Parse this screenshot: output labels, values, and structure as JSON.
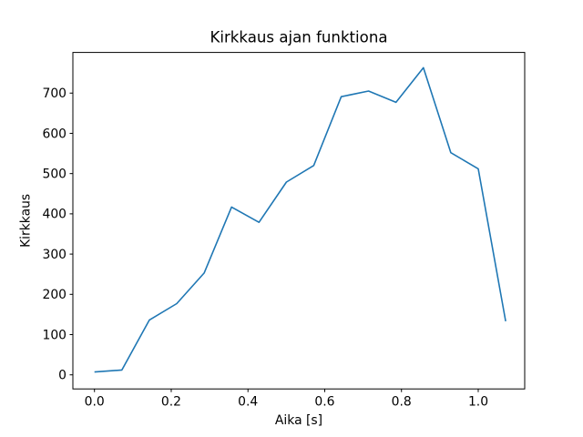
{
  "chart_data": {
    "type": "line",
    "title": "Kirkkaus ajan funktiona",
    "xlabel": "Aika [s]",
    "ylabel": "Kirkkaus",
    "x": [
      0.0,
      0.0714,
      0.1429,
      0.2143,
      0.2857,
      0.3571,
      0.4286,
      0.5,
      0.5714,
      0.6429,
      0.7143,
      0.7857,
      0.8571,
      0.9286,
      1.0,
      1.0714
    ],
    "y": [
      7,
      12,
      136,
      177,
      253,
      417,
      379,
      479,
      520,
      691,
      705,
      677,
      763,
      552,
      512,
      133
    ],
    "series_color": "#1f77b4",
    "background_color": "#ffffff",
    "xlim": [
      -0.0563,
      1.1211
    ],
    "ylim": [
      -35,
      801
    ],
    "xtick_labels": [
      "0.0",
      "0.2",
      "0.4",
      "0.6",
      "0.8",
      "1.0"
    ],
    "xtick_values": [
      0.0,
      0.2,
      0.4,
      0.6,
      0.8,
      1.0
    ],
    "ytick_labels": [
      "0",
      "100",
      "200",
      "300",
      "400",
      "500",
      "600",
      "700"
    ],
    "ytick_values": [
      0,
      100,
      200,
      300,
      400,
      500,
      600,
      700
    ],
    "grid": false,
    "legend_position": "none"
  }
}
